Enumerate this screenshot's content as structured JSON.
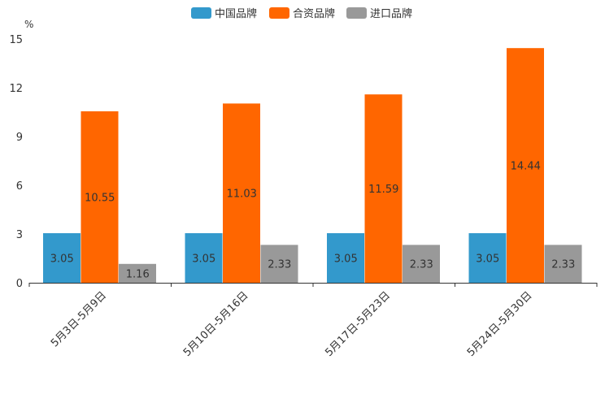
{
  "chart_data": {
    "type": "bar",
    "unit": "%",
    "categories": [
      "5月3日-5月9日",
      "5月10日-5月16日",
      "5月17日-5月23日",
      "5月24日-5月30日"
    ],
    "series": [
      {
        "name": "中国品牌",
        "color": "#3399cc",
        "values": [
          3.05,
          3.05,
          3.05,
          3.05
        ],
        "labels": [
          "3.05",
          "3.05",
          "3.05",
          "3.05"
        ]
      },
      {
        "name": "合资品牌",
        "color": "#ff6600",
        "values": [
          10.55,
          11.03,
          11.59,
          14.44
        ],
        "labels": [
          "10.55",
          "11.03",
          "11.59",
          "14.44"
        ]
      },
      {
        "name": "进口品牌",
        "color": "#999999",
        "values": [
          1.16,
          2.33,
          2.33,
          2.33
        ],
        "labels": [
          "1.16",
          "2.33",
          "2.33",
          "2.33"
        ]
      }
    ],
    "ylim": [
      0,
      15
    ],
    "yticks": [
      "0",
      "3",
      "6",
      "9",
      "12",
      "15"
    ],
    "legend_position": "top-center"
  }
}
